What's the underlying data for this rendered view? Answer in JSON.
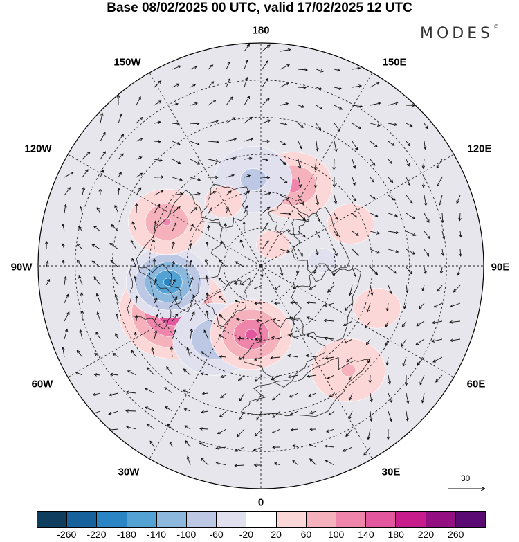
{
  "title": "Base 08/02/2025 00 UTC, valid 17/02/2025 12 UTC",
  "brand": {
    "text": "MODES",
    "mark": "©"
  },
  "longitude_labels": {
    "top": "180",
    "bottom": "0",
    "left": "90W",
    "right": "90E",
    "upper_left_outer": "150W",
    "upper_left_inner": "120W",
    "upper_right_outer": "150E",
    "upper_right_inner": "120E",
    "lower_left_inner": "60W",
    "lower_left_outer": "30W",
    "lower_right_inner": "60E",
    "lower_right_outer": "30E"
  },
  "reference_vector": {
    "label": "30"
  },
  "colorbar": {
    "colors": [
      "#0f3d5e",
      "#17629c",
      "#2b84c4",
      "#54a2d4",
      "#8cb8de",
      "#bcc8e4",
      "#e0e0ef",
      "#ffffff",
      "#fbd7d8",
      "#f5b2bd",
      "#f085ab",
      "#e2579d",
      "#c71d8c",
      "#941082",
      "#5a0a72"
    ],
    "ticks": [
      "-260",
      "-220",
      "-180",
      "-140",
      "-100",
      "-60",
      "-20",
      "20",
      "60",
      "100",
      "140",
      "180",
      "220",
      "260"
    ]
  },
  "anomaly_centers": [
    {
      "lon": -62,
      "lat": 50,
      "value": 190,
      "extent": 0.26
    },
    {
      "lon": -80,
      "lat": 52,
      "value": -200,
      "extent": 0.2
    },
    {
      "lon": -32,
      "lat": 55,
      "value": -110,
      "extent": 0.22
    },
    {
      "lon": -8,
      "lat": 62,
      "value": 160,
      "extent": 0.2
    },
    {
      "lon": -115,
      "lat": 48,
      "value": 110,
      "extent": 0.2
    },
    {
      "lon": 158,
      "lat": 55,
      "value": 120,
      "extent": 0.2
    },
    {
      "lon": -175,
      "lat": 55,
      "value": -80,
      "extent": 0.22
    },
    {
      "lon": 40,
      "lat": 35,
      "value": 70,
      "extent": 0.22
    },
    {
      "lon": 70,
      "lat": 40,
      "value": 40,
      "extent": 0.2
    },
    {
      "lon": 115,
      "lat": 50,
      "value": 40,
      "extent": 0.2
    },
    {
      "lon": 150,
      "lat": 80,
      "value": 50,
      "extent": 0.12
    },
    {
      "lon": 95,
      "lat": 65,
      "value": -30,
      "extent": 0.18
    },
    {
      "lon": -150,
      "lat": 60,
      "value": 40,
      "extent": 0.16
    }
  ]
}
